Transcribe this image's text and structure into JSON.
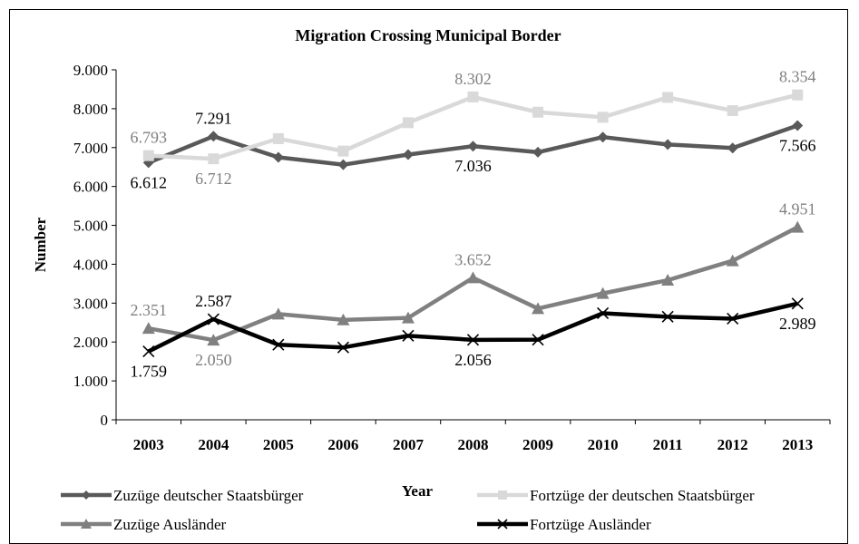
{
  "chart_data": {
    "type": "line",
    "title": "Migration Crossing Municipal Border",
    "xlabel": "Year",
    "ylabel": "Number",
    "ylim": [
      0,
      9000
    ],
    "y_ticks": [
      {
        "value": 0,
        "label": "0"
      },
      {
        "value": 1000,
        "label": "1.000"
      },
      {
        "value": 2000,
        "label": "2.000"
      },
      {
        "value": 3000,
        "label": "3.000"
      },
      {
        "value": 4000,
        "label": "4.000"
      },
      {
        "value": 5000,
        "label": "5.000"
      },
      {
        "value": 6000,
        "label": "6.000"
      },
      {
        "value": 7000,
        "label": "7.000"
      },
      {
        "value": 8000,
        "label": "8.000"
      },
      {
        "value": 9000,
        "label": "9.000"
      }
    ],
    "categories": [
      "2003",
      "2004",
      "2005",
      "2006",
      "2007",
      "2008",
      "2009",
      "2010",
      "2011",
      "2012",
      "2013"
    ],
    "grid": false,
    "legend_position": "bottom",
    "series": [
      {
        "name": "Zuzüge deutscher Staatsbürger",
        "color": "#595959",
        "marker": "diamond",
        "values": [
          6612,
          7291,
          6750,
          6560,
          6820,
          7036,
          6880,
          7270,
          7080,
          6990,
          7566
        ],
        "data_labels": [
          {
            "index": 0,
            "text": "6.612",
            "pos": "below"
          },
          {
            "index": 1,
            "text": "7.291",
            "pos": "above"
          },
          {
            "index": 5,
            "text": "7.036",
            "pos": "below"
          },
          {
            "index": 10,
            "text": "7.566",
            "pos": "below"
          }
        ]
      },
      {
        "name": "Fortzüge der deutschen Staatsbürger",
        "color": "#d9d9d9",
        "marker": "square",
        "values": [
          6793,
          6712,
          7230,
          6910,
          7640,
          8302,
          7910,
          7780,
          8290,
          7950,
          8354
        ],
        "data_labels": [
          {
            "index": 0,
            "text": "6.793",
            "pos": "above"
          },
          {
            "index": 1,
            "text": "6.712",
            "pos": "below"
          },
          {
            "index": 5,
            "text": "8.302",
            "pos": "above"
          },
          {
            "index": 10,
            "text": "8.354",
            "pos": "above"
          }
        ]
      },
      {
        "name": "Zuzüge Ausländer",
        "color": "#808080",
        "marker": "triangle",
        "values": [
          2351,
          2050,
          2720,
          2570,
          2620,
          3652,
          2860,
          3250,
          3590,
          4090,
          4951
        ],
        "data_labels": [
          {
            "index": 0,
            "text": "2.351",
            "pos": "above"
          },
          {
            "index": 1,
            "text": "2.050",
            "pos": "below"
          },
          {
            "index": 5,
            "text": "3.652",
            "pos": "above"
          },
          {
            "index": 10,
            "text": "4.951",
            "pos": "above"
          }
        ]
      },
      {
        "name": "Fortzüge Ausländer",
        "color": "#000000",
        "marker": "x",
        "values": [
          1759,
          2587,
          1930,
          1860,
          2160,
          2056,
          2060,
          2740,
          2650,
          2600,
          2989
        ],
        "data_labels": [
          {
            "index": 0,
            "text": "1.759",
            "pos": "below"
          },
          {
            "index": 1,
            "text": "2.587",
            "pos": "above"
          },
          {
            "index": 5,
            "text": "2.056",
            "pos": "below"
          },
          {
            "index": 10,
            "text": "2.989",
            "pos": "below"
          }
        ]
      }
    ]
  }
}
